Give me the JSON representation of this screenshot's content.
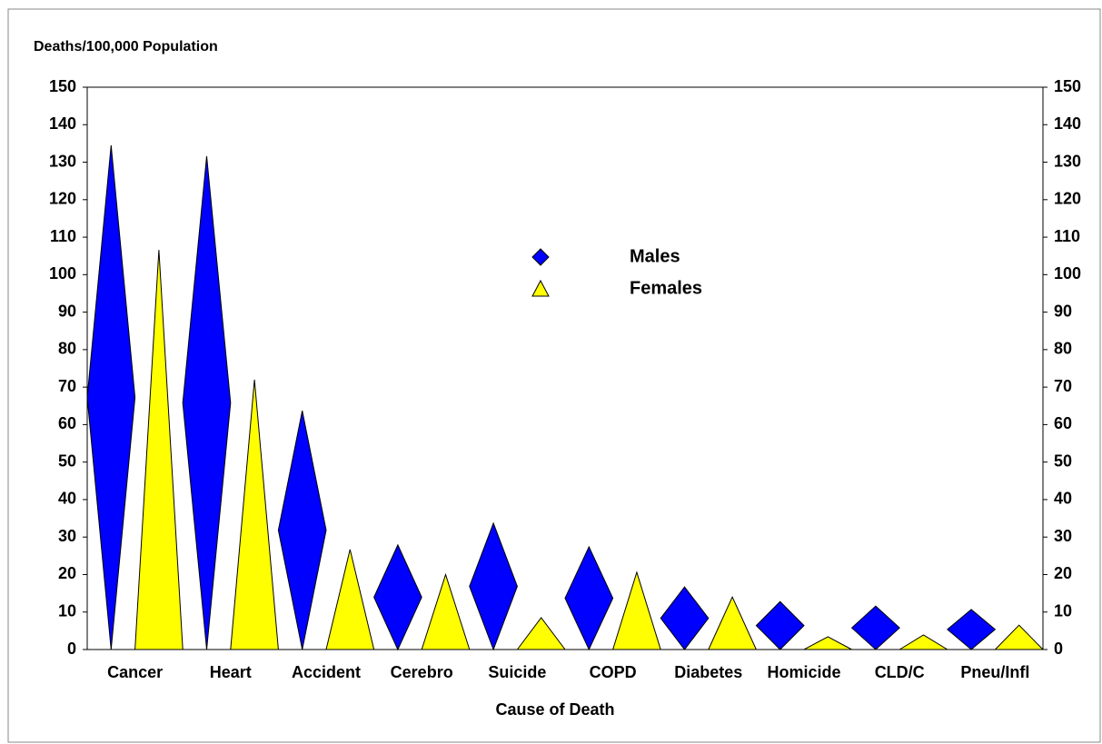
{
  "chart_data": {
    "type": "bar",
    "y_label": "Deaths/100,000 Population",
    "x_label": "Cause of Death",
    "categories": [
      "Cancer",
      "Heart",
      "Accident",
      "Cerebro",
      "Suicide",
      "COPD",
      "Diabetes",
      "Homicide",
      "CLD/C",
      "Pneu/Infl"
    ],
    "series": [
      {
        "name": "Males",
        "color": "#0000ff",
        "shape": "diamond",
        "values": [
          134.5,
          131.6,
          63.7,
          27.9,
          33.7,
          27.4,
          16.7,
          12.8,
          11.6,
          10.7
        ]
      },
      {
        "name": "Females",
        "color": "#ffff00",
        "shape": "triangle",
        "values": [
          106.6,
          72,
          26.7,
          20,
          8.5,
          20.6,
          14,
          3.4,
          3.9,
          6.5
        ]
      }
    ],
    "ylim": [
      0,
      150
    ],
    "yticks": [
      0,
      10,
      20,
      30,
      40,
      50,
      60,
      70,
      80,
      90,
      100,
      110,
      120,
      130,
      140,
      150
    ],
    "y2lim": [
      0,
      150
    ],
    "y2ticks": [
      0,
      10,
      20,
      30,
      40,
      50,
      60,
      70,
      80,
      90,
      100,
      110,
      120,
      130,
      140,
      150
    ],
    "grid": false
  }
}
